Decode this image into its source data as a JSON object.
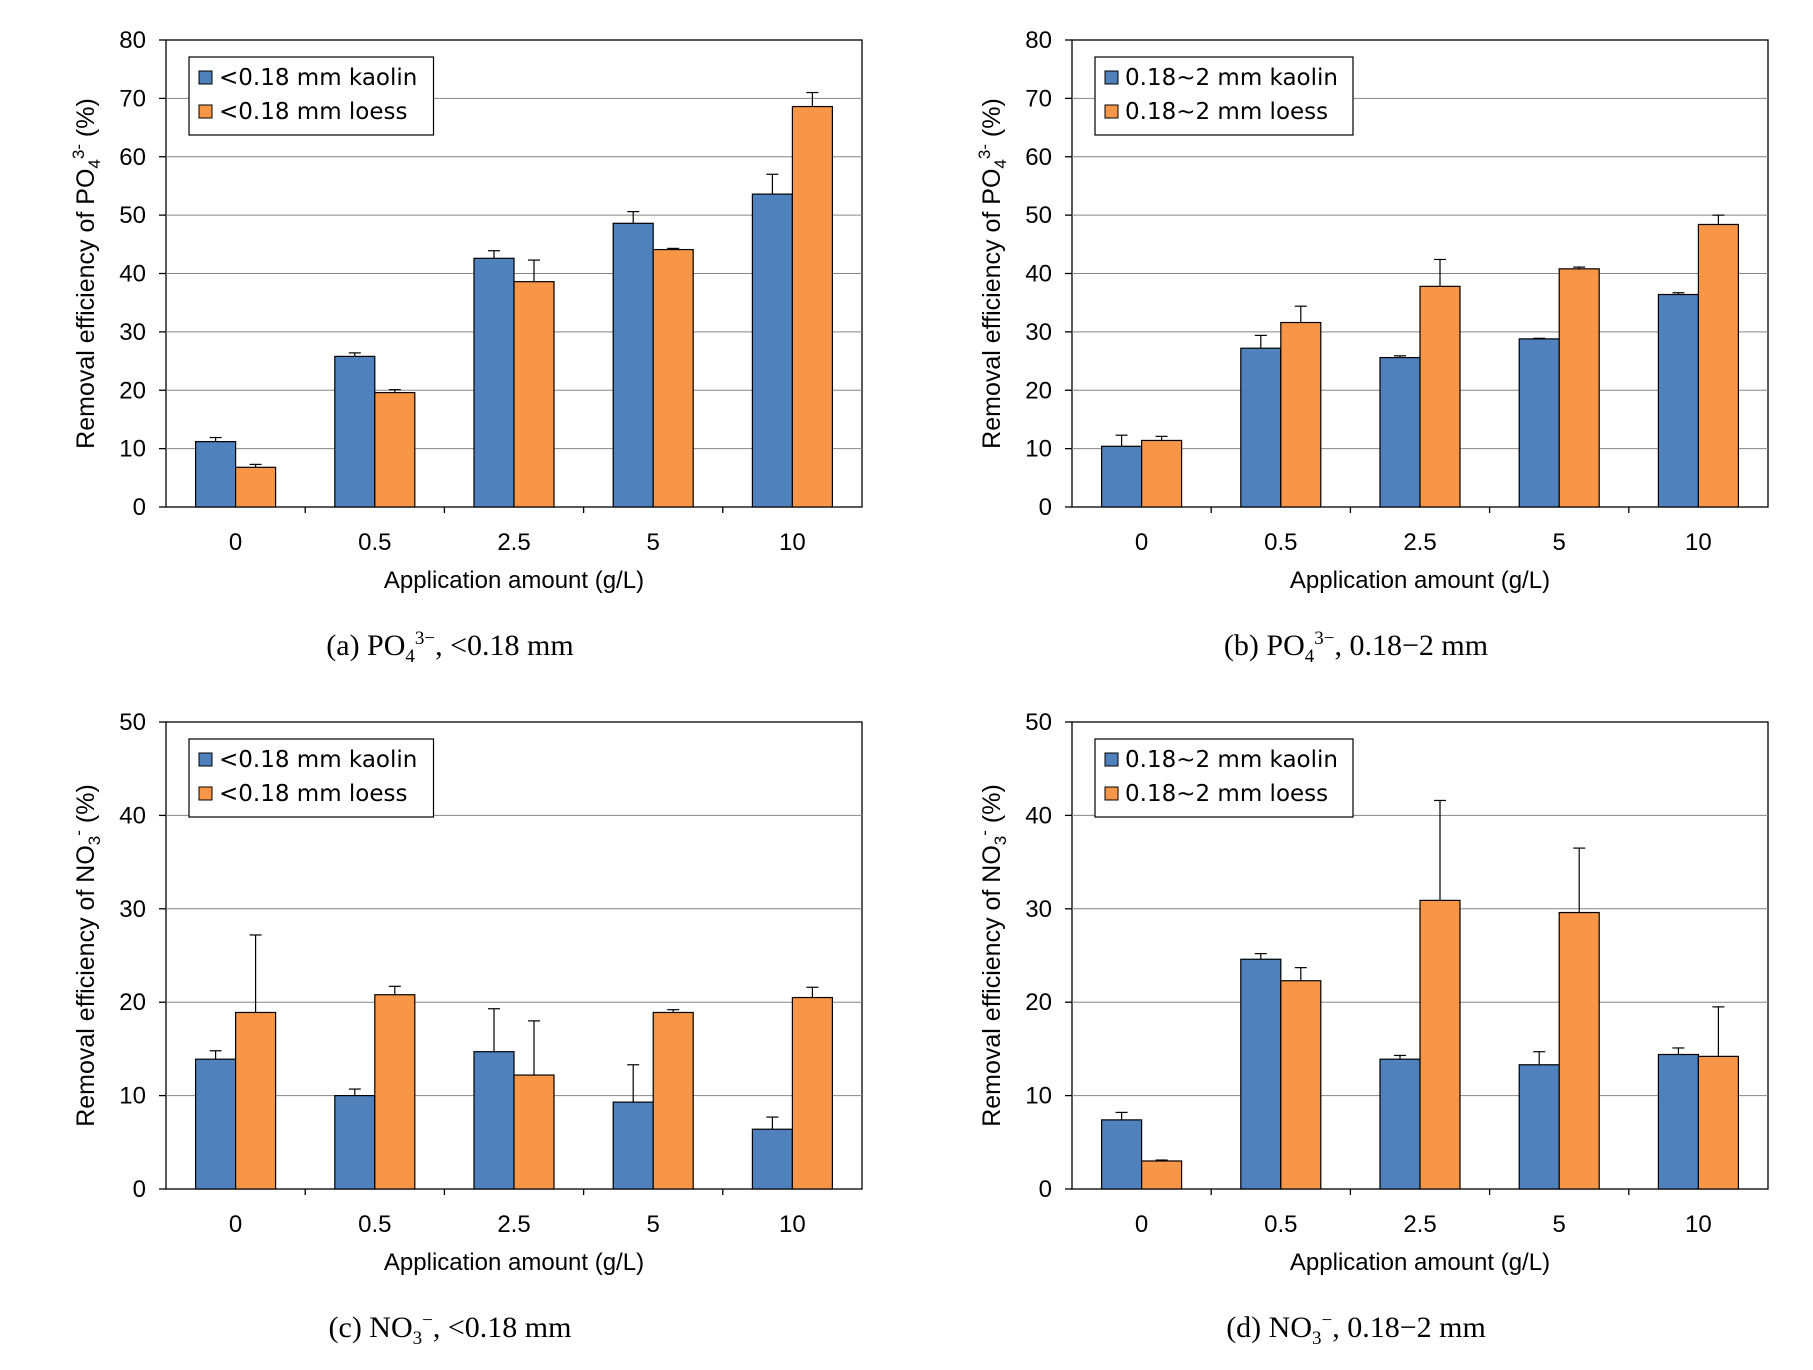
{
  "chart_data": [
    {
      "type": "bar",
      "ylabel_prefix": "Removal efficiency of PO",
      "ylabel_sub": "4",
      "ylabel_sup": "3-",
      "ylabel_suffix": " (%)",
      "xlabel": "Application amount (g/L)",
      "categories": [
        "0",
        "0.5",
        "2.5",
        "5",
        "10"
      ],
      "ylim": [
        0,
        80
      ],
      "yticks": [
        0,
        10,
        20,
        30,
        40,
        50,
        60,
        70,
        80
      ],
      "grid": true,
      "legend_position": "top-left",
      "series": [
        {
          "name": "<0.18 mm kaolin",
          "color": "#4f81bd",
          "values": [
            11.2,
            25.8,
            42.6,
            48.6,
            53.6
          ],
          "errors": [
            0.7,
            0.6,
            1.3,
            2.0,
            3.4
          ]
        },
        {
          "name": "<0.18 mm loess",
          "color": "#f79646",
          "values": [
            6.8,
            19.6,
            38.6,
            44.1,
            68.6
          ],
          "errors": [
            0.5,
            0.5,
            3.7,
            0.2,
            2.4
          ]
        }
      ],
      "caption": {
        "prefix": "(a) PO",
        "sub": "4",
        "sup": "3−",
        "suffix": ", <0.18 mm"
      }
    },
    {
      "type": "bar",
      "ylabel_prefix": "Removal efficiency of PO",
      "ylabel_sub": "4",
      "ylabel_sup": "3-",
      "ylabel_suffix": " (%)",
      "xlabel": "Application amount (g/L)",
      "categories": [
        "0",
        "0.5",
        "2.5",
        "5",
        "10"
      ],
      "ylim": [
        0,
        80
      ],
      "yticks": [
        0,
        10,
        20,
        30,
        40,
        50,
        60,
        70,
        80
      ],
      "grid": true,
      "legend_position": "top-left",
      "series": [
        {
          "name": "0.18~2 mm kaolin",
          "color": "#4f81bd",
          "values": [
            10.4,
            27.2,
            25.6,
            28.8,
            36.4
          ],
          "errors": [
            1.9,
            2.2,
            0.3,
            0.1,
            0.3
          ]
        },
        {
          "name": "0.18~2 mm loess",
          "color": "#f79646",
          "values": [
            11.4,
            31.6,
            37.8,
            40.8,
            48.4
          ],
          "errors": [
            0.7,
            2.8,
            4.6,
            0.3,
            1.6
          ]
        }
      ],
      "caption": {
        "prefix": "(b) PO",
        "sub": "4",
        "sup": "3−",
        "suffix": ", 0.18−2 mm"
      }
    },
    {
      "type": "bar",
      "ylabel_prefix": "Removal efficiency of NO",
      "ylabel_sub": "3",
      "ylabel_sup": "-",
      "ylabel_suffix": " (%)",
      "xlabel": "Application amount (g/L)",
      "categories": [
        "0",
        "0.5",
        "2.5",
        "5",
        "10"
      ],
      "ylim": [
        0,
        50
      ],
      "yticks": [
        0,
        10,
        20,
        30,
        40,
        50
      ],
      "grid": true,
      "legend_position": "top-left",
      "series": [
        {
          "name": "<0.18 mm kaolin",
          "color": "#4f81bd",
          "values": [
            13.9,
            10.0,
            14.7,
            9.3,
            6.4
          ],
          "errors": [
            0.9,
            0.7,
            4.6,
            4.0,
            1.3
          ]
        },
        {
          "name": "<0.18 mm loess",
          "color": "#f79646",
          "values": [
            18.9,
            20.8,
            12.2,
            18.9,
            20.5
          ],
          "errors": [
            8.3,
            0.9,
            5.8,
            0.3,
            1.1
          ]
        }
      ],
      "caption": {
        "prefix": "(c) NO",
        "sub": "3",
        "sup": "−",
        "suffix": ", <0.18 mm"
      }
    },
    {
      "type": "bar",
      "ylabel_prefix": "Removal efficiency of NO",
      "ylabel_sub": "3",
      "ylabel_sup": "-",
      "ylabel_suffix": " (%)",
      "xlabel": "Application amount (g/L)",
      "categories": [
        "0",
        "0.5",
        "2.5",
        "5",
        "10"
      ],
      "ylim": [
        0,
        50
      ],
      "yticks": [
        0,
        10,
        20,
        30,
        40,
        50
      ],
      "grid": true,
      "legend_position": "top-left",
      "series": [
        {
          "name": "0.18~2 mm kaolin",
          "color": "#4f81bd",
          "values": [
            7.4,
            24.6,
            13.9,
            13.3,
            14.4
          ],
          "errors": [
            0.8,
            0.6,
            0.4,
            1.4,
            0.7
          ]
        },
        {
          "name": "0.18~2 mm loess",
          "color": "#f79646",
          "values": [
            3.0,
            22.3,
            30.9,
            29.6,
            14.2
          ],
          "errors": [
            0.1,
            1.4,
            10.7,
            6.9,
            5.3
          ]
        }
      ],
      "caption": {
        "prefix": "(d) NO",
        "sub": "3",
        "sup": "−",
        "suffix": ", 0.18−2 mm"
      }
    }
  ]
}
